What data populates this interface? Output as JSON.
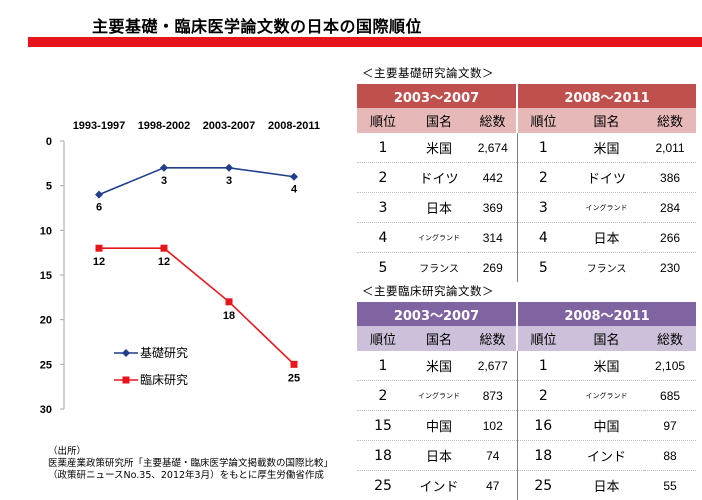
{
  "title": "主要基礎・臨床医学論文数の日本の国際順位",
  "chart_data": {
    "type": "line",
    "categories": [
      "1993-1997",
      "1998-2002",
      "2003-2007",
      "2008-2011"
    ],
    "y_ticks": [
      "0",
      "5",
      "10",
      "15",
      "20",
      "25",
      "30"
    ],
    "ylim": [
      0,
      30
    ],
    "y_inverted": true,
    "series": [
      {
        "name": "基礎研究",
        "values": [
          6,
          3,
          3,
          4
        ],
        "labels": [
          "6",
          "3",
          "3",
          "4"
        ],
        "color": "#1f3f8a",
        "marker": "diamond"
      },
      {
        "name": "臨床研究",
        "values": [
          12,
          12,
          18,
          25
        ],
        "labels": [
          "12",
          "12",
          "18",
          "25"
        ],
        "color": "#e8141b",
        "marker": "square"
      }
    ],
    "legend": [
      "基礎研究",
      "臨床研究"
    ]
  },
  "source_notes": [
    "（出所）",
    "医薬産業政策研究所「主要基礎・臨床医学論文掲載数の国際比較」",
    "（政策研ニュースNo.35、2012年3月）をもとに厚生労働省作成"
  ],
  "tables": {
    "basic": {
      "caption": "＜主要基礎研究論文数＞",
      "periods": [
        "2003〜2007",
        "2008〜2011"
      ],
      "headers": [
        "順位",
        "国名",
        "総数"
      ],
      "left": [
        {
          "rank": "1",
          "country": "米国",
          "total": "2,674",
          "size": "normal"
        },
        {
          "rank": "2",
          "country": "ドイツ",
          "total": "442",
          "size": "normal"
        },
        {
          "rank": "3",
          "country": "日本",
          "total": "369",
          "size": "normal"
        },
        {
          "rank": "4",
          "country": "イングランド",
          "total": "314",
          "size": "small"
        },
        {
          "rank": "5",
          "country": "フランス",
          "total": "269",
          "size": "mid"
        }
      ],
      "right": [
        {
          "rank": "1",
          "country": "米国",
          "total": "2,011",
          "size": "normal"
        },
        {
          "rank": "2",
          "country": "ドイツ",
          "total": "386",
          "size": "normal"
        },
        {
          "rank": "3",
          "country": "イングランド",
          "total": "284",
          "size": "small"
        },
        {
          "rank": "4",
          "country": "日本",
          "total": "266",
          "size": "normal"
        },
        {
          "rank": "5",
          "country": "フランス",
          "total": "230",
          "size": "mid"
        }
      ]
    },
    "clinical": {
      "caption": "＜主要臨床研究論文数＞",
      "periods": [
        "2003〜2007",
        "2008〜2011"
      ],
      "headers": [
        "順位",
        "国名",
        "総数"
      ],
      "left": [
        {
          "rank": "1",
          "country": "米国",
          "total": "2,677",
          "size": "normal"
        },
        {
          "rank": "2",
          "country": "イングランド",
          "total": "873",
          "size": "small"
        },
        {
          "rank": "15",
          "country": "中国",
          "total": "102",
          "size": "normal"
        },
        {
          "rank": "18",
          "country": "日本",
          "total": "74",
          "size": "normal"
        },
        {
          "rank": "25",
          "country": "インド",
          "total": "47",
          "size": "normal"
        }
      ],
      "right": [
        {
          "rank": "1",
          "country": "米国",
          "total": "2,105",
          "size": "normal"
        },
        {
          "rank": "2",
          "country": "イングランド",
          "total": "685",
          "size": "small"
        },
        {
          "rank": "16",
          "country": "中国",
          "total": "97",
          "size": "normal"
        },
        {
          "rank": "18",
          "country": "インド",
          "total": "88",
          "size": "normal"
        },
        {
          "rank": "25",
          "country": "日本",
          "total": "55",
          "size": "normal"
        }
      ]
    }
  }
}
